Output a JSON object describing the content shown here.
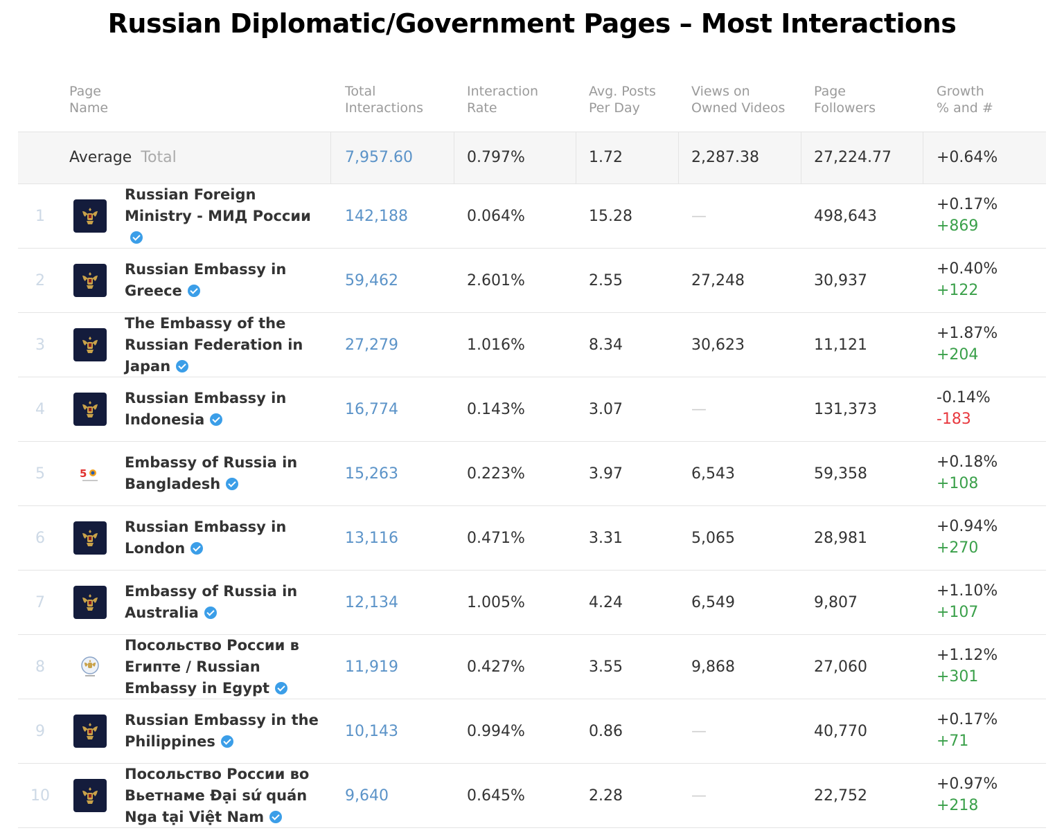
{
  "title": "Russian Diplomatic/Government Pages – Most Interactions",
  "colors": {
    "link": "#5b93c8",
    "positive": "#3aa04a",
    "negative": "#e8393f",
    "verified": "#3b9ee8",
    "logo_bg": "#141c3c"
  },
  "headers": {
    "page_name": [
      "Page",
      "Name"
    ],
    "total_interactions": [
      "Total",
      "Interactions"
    ],
    "interaction_rate": [
      "Interaction",
      "Rate"
    ],
    "avg_posts": [
      "Avg. Posts",
      "Per Day"
    ],
    "views": [
      "Views on",
      "Owned Videos"
    ],
    "followers": [
      "Page",
      "Followers"
    ],
    "growth": [
      "Growth",
      "% and #"
    ]
  },
  "average": {
    "label": "Average",
    "sublabel": "Total",
    "total_interactions": "7,957.60",
    "interaction_rate": "0.797%",
    "avg_posts": "1.72",
    "views": "2,287.38",
    "followers": "27,224.77",
    "growth_pct": "+0.64%"
  },
  "rows": [
    {
      "rank": "1",
      "name": "Russian Foreign Ministry - МИД России",
      "logo": "crest-icon",
      "total_interactions": "142,188",
      "interaction_rate": "0.064%",
      "avg_posts": "15.28",
      "views": "—",
      "followers": "498,643",
      "growth_pct": "+0.17%",
      "growth_num": "+869",
      "trend": "up"
    },
    {
      "rank": "2",
      "name": "Russian Embassy in Greece",
      "logo": "crest-icon",
      "total_interactions": "59,462",
      "interaction_rate": "2.601%",
      "avg_posts": "2.55",
      "views": "27,248",
      "followers": "30,937",
      "growth_pct": "+0.40%",
      "growth_num": "+122",
      "trend": "up"
    },
    {
      "rank": "3",
      "name": "The Embassy of the Russian Federation in Japan",
      "logo": "crest-icon",
      "total_interactions": "27,279",
      "interaction_rate": "1.016%",
      "avg_posts": "8.34",
      "views": "30,623",
      "followers": "11,121",
      "growth_pct": "+1.87%",
      "growth_num": "+204",
      "trend": "up"
    },
    {
      "rank": "4",
      "name": "Russian Embassy in Indonesia",
      "logo": "crest-icon",
      "total_interactions": "16,774",
      "interaction_rate": "0.143%",
      "avg_posts": "3.07",
      "views": "—",
      "followers": "131,373",
      "growth_pct": "-0.14%",
      "growth_num": "-183",
      "trend": "down"
    },
    {
      "rank": "5",
      "name": "Embassy of Russia in Bangladesh",
      "logo": "anniversary-logo-icon",
      "total_interactions": "15,263",
      "interaction_rate": "0.223%",
      "avg_posts": "3.97",
      "views": "6,543",
      "followers": "59,358",
      "growth_pct": "+0.18%",
      "growth_num": "+108",
      "trend": "up"
    },
    {
      "rank": "6",
      "name": "Russian Embassy in London",
      "logo": "crest-icon",
      "total_interactions": "13,116",
      "interaction_rate": "0.471%",
      "avg_posts": "3.31",
      "views": "5,065",
      "followers": "28,981",
      "growth_pct": "+0.94%",
      "growth_num": "+270",
      "trend": "up"
    },
    {
      "rank": "7",
      "name": "Embassy of Russia in Australia",
      "logo": "crest-icon",
      "total_interactions": "12,134",
      "interaction_rate": "1.005%",
      "avg_posts": "4.24",
      "views": "6,549",
      "followers": "9,807",
      "growth_pct": "+1.10%",
      "growth_num": "+107",
      "trend": "up"
    },
    {
      "rank": "8",
      "name": "Посольство России в Египте / Russian Embassy in Egypt",
      "logo": "seal-icon",
      "total_interactions": "11,919",
      "interaction_rate": "0.427%",
      "avg_posts": "3.55",
      "views": "9,868",
      "followers": "27,060",
      "growth_pct": "+1.12%",
      "growth_num": "+301",
      "trend": "up"
    },
    {
      "rank": "9",
      "name": "Russian Embassy in the Philippines",
      "logo": "crest-icon",
      "total_interactions": "10,143",
      "interaction_rate": "0.994%",
      "avg_posts": "0.86",
      "views": "—",
      "followers": "40,770",
      "growth_pct": "+0.17%",
      "growth_num": "+71",
      "trend": "up"
    },
    {
      "rank": "10",
      "name": "Посольство России во Вьетнаме Đại sứ quán Nga tại Việt Nam",
      "logo": "crest-icon",
      "total_interactions": "9,640",
      "interaction_rate": "0.645%",
      "avg_posts": "2.28",
      "views": "—",
      "followers": "22,752",
      "growth_pct": "+0.97%",
      "growth_num": "+218",
      "trend": "up"
    }
  ]
}
